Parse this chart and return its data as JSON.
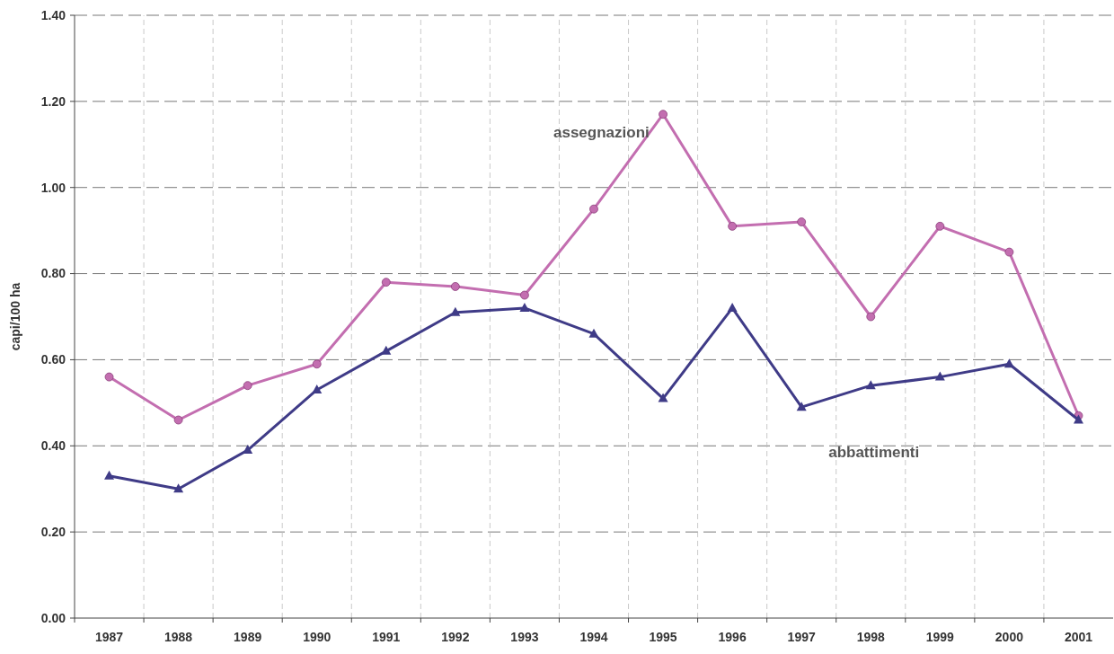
{
  "chart_data": {
    "type": "line",
    "ylabel": "capi/100 ha",
    "categories": [
      "1987",
      "1988",
      "1989",
      "1990",
      "1991",
      "1992",
      "1993",
      "1994",
      "1995",
      "1996",
      "1997",
      "1998",
      "1999",
      "2000",
      "2001"
    ],
    "series": [
      {
        "name": "assegnazioni",
        "color": "#c36eb0",
        "marker": "circle",
        "values": [
          0.56,
          0.46,
          0.54,
          0.59,
          0.78,
          0.77,
          0.75,
          0.95,
          1.17,
          0.91,
          0.92,
          0.7,
          0.91,
          0.85,
          0.47
        ]
      },
      {
        "name": "abbattimenti",
        "color": "#3f3b87",
        "marker": "triangle",
        "values": [
          0.33,
          0.3,
          0.39,
          0.53,
          0.62,
          0.71,
          0.72,
          0.66,
          0.51,
          0.72,
          0.49,
          0.54,
          0.56,
          0.59,
          0.46
        ]
      }
    ],
    "ylim": [
      0,
      1.4
    ],
    "yticks": [
      {
        "value": 0,
        "label": "0.00"
      },
      {
        "value": 0.2,
        "label": "0.20"
      },
      {
        "value": 0.4,
        "label": "0.40"
      },
      {
        "value": 0.6,
        "label": "0.60"
      },
      {
        "value": 0.8,
        "label": "0.80"
      },
      {
        "value": 1,
        "label": "1.00"
      },
      {
        "value": 1.2,
        "label": "1.20"
      },
      {
        "value": 1.4,
        "label": "1.40"
      }
    ],
    "grid": true,
    "line_style": "solid"
  }
}
